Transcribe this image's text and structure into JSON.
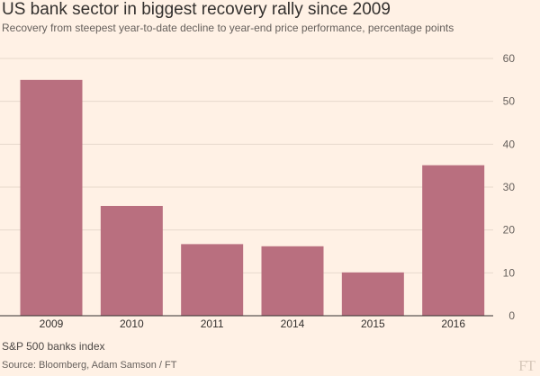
{
  "title": "US bank sector in biggest recovery rally since 2009",
  "subtitle": "Recovery from steepest year-to-date decline to year-end price performance, percentage points",
  "note": "S&P 500 banks index",
  "source": "Source: Bloomberg, Adam Samson / FT",
  "logo_text": "FT",
  "colors": {
    "background": "#fff1e5",
    "bar": "#b96f7f",
    "grid": "#e7d9cc",
    "axis": "#33302e",
    "text": "#66605c"
  },
  "chart_data": {
    "type": "bar",
    "categories": [
      "2009",
      "2010",
      "2011",
      "2014",
      "2015",
      "2016"
    ],
    "values": [
      55,
      25.6,
      16.7,
      16.2,
      10.1,
      35.1
    ],
    "yticks": [
      0,
      10,
      20,
      30,
      40,
      50,
      60
    ],
    "ylim": [
      0,
      60
    ],
    "grid": true,
    "y_axis_position": "right"
  }
}
